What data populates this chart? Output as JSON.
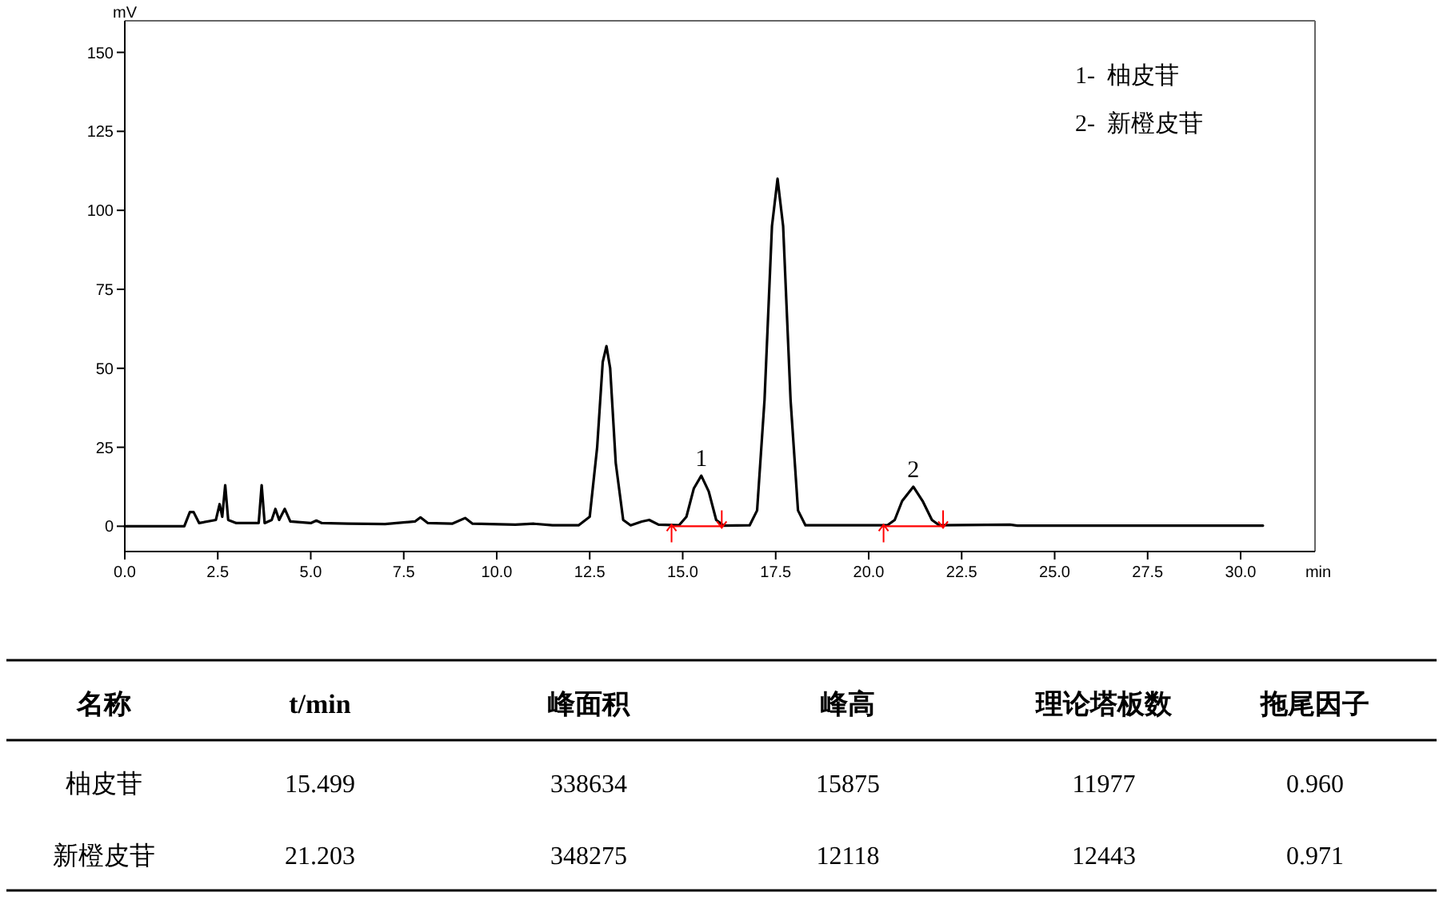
{
  "chart_data": [
    {
      "type": "line",
      "ylabel": "mV",
      "xlabel": "min",
      "xlim": [
        0,
        32
      ],
      "ylim": [
        -8,
        160
      ],
      "xticks": [
        {
          "value": 0,
          "label": "0.0"
        },
        {
          "value": 2.5,
          "label": "2.5"
        },
        {
          "value": 5,
          "label": "5.0"
        },
        {
          "value": 7.5,
          "label": "7.5"
        },
        {
          "value": 10,
          "label": "10.0"
        },
        {
          "value": 12.5,
          "label": "12.5"
        },
        {
          "value": 15,
          "label": "15.0"
        },
        {
          "value": 17.5,
          "label": "17.5"
        },
        {
          "value": 20,
          "label": "20.0"
        },
        {
          "value": 22.5,
          "label": "22.5"
        },
        {
          "value": 25,
          "label": "25.0"
        },
        {
          "value": 27.5,
          "label": "27.5"
        },
        {
          "value": 30,
          "label": "30.0"
        }
      ],
      "yticks": [
        0,
        25,
        50,
        75,
        100,
        125,
        150
      ],
      "grid": false,
      "marker": "none",
      "line_style": "solid",
      "series": [
        {
          "color": "#000000",
          "x": [
            0,
            1.6,
            1.75,
            1.85,
            2.0,
            2.45,
            2.55,
            2.62,
            2.7,
            2.78,
            3.0,
            3.6,
            3.68,
            3.76,
            3.95,
            4.05,
            4.15,
            4.3,
            4.45,
            5.0,
            5.15,
            5.3,
            6.0,
            7.0,
            7.8,
            7.95,
            8.15,
            8.8,
            9.15,
            9.35,
            10.5,
            11.0,
            11.5,
            12.2,
            12.5,
            12.7,
            12.85,
            12.95,
            13.05,
            13.2,
            13.4,
            13.6,
            13.9,
            14.1,
            14.35,
            14.9,
            15.1,
            15.3,
            15.5,
            15.7,
            15.9,
            16.1,
            16.8,
            17.0,
            17.2,
            17.4,
            17.55,
            17.7,
            17.9,
            18.1,
            18.3,
            20.5,
            20.7,
            20.9,
            21.2,
            21.45,
            21.7,
            21.9,
            23.8,
            24.0,
            30.6
          ],
          "values": [
            0,
            0,
            4.5,
            4.5,
            1,
            2,
            7,
            3,
            13,
            2,
            1,
            1,
            13,
            1,
            2,
            5.5,
            2,
            5.5,
            1.5,
            1,
            1.8,
            1,
            0.8,
            0.7,
            1.5,
            2.8,
            1,
            0.8,
            2.6,
            0.8,
            0.5,
            0.8,
            0.3,
            0.3,
            3,
            25,
            52,
            57,
            50,
            20,
            2,
            0.3,
            1.5,
            2,
            0.5,
            0.3,
            3,
            12,
            16,
            11,
            2,
            0.2,
            0.3,
            5,
            40,
            95,
            110,
            95,
            40,
            5,
            0.3,
            0.3,
            2,
            8,
            12.5,
            8,
            2,
            0.3,
            0.5,
            0.2,
            0.2
          ]
        },
        {
          "color": "#ff0000",
          "marker": "cross",
          "x": [
            14.7,
            16.05,
            18,
            20.4,
            22.0
          ],
          "values": [
            0,
            0,
            null,
            0,
            0
          ]
        }
      ],
      "annotations": [
        {
          "text": "1",
          "x": 15.5,
          "y": 16
        },
        {
          "text": "2",
          "x": 21.2,
          "y": 12.5
        },
        "1-  柚皮苷",
        "2-  新橙皮苷"
      ]
    },
    {
      "type": "other",
      "annotations": [
        "名称",
        "t/min",
        "峰面积",
        "峰高",
        "理论塔板数",
        "拖尾因子",
        "柚皮苷",
        "15.499",
        "338634",
        "15875",
        "11977",
        "0.960",
        "新橙皮苷",
        "21.203",
        "348275",
        "12118",
        "12443",
        "0.971"
      ]
    }
  ]
}
